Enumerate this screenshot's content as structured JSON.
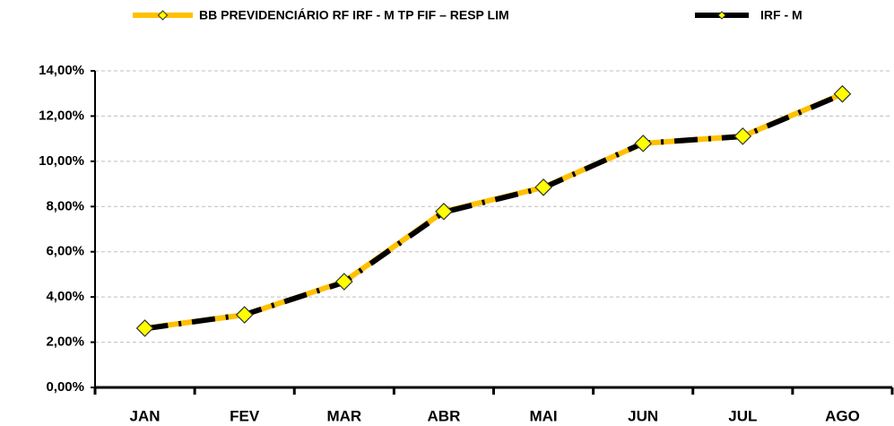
{
  "chart_data": {
    "type": "line",
    "categories": [
      "JAN",
      "FEV",
      "MAR",
      "ABR",
      "MAI",
      "JUN",
      "JUL",
      "AGO"
    ],
    "series": [
      {
        "name": "BB PREVIDENCIÁRIO RF IRF - M TP FIF – RESP LIM",
        "color": "#ffc000",
        "marker_color": "#ffff00",
        "values": [
          2.62,
          3.21,
          4.68,
          7.78,
          8.85,
          10.79,
          11.11,
          12.98
        ]
      },
      {
        "name": "IRF - M",
        "color": "#000000",
        "marker_color": "#ffff00",
        "values": [
          2.6,
          3.22,
          4.65,
          7.75,
          8.83,
          10.8,
          11.1,
          12.96
        ]
      }
    ],
    "ylim": [
      0,
      14
    ],
    "yticks": [
      {
        "value": 0,
        "label": "0,00%"
      },
      {
        "value": 2,
        "label": "2,00%"
      },
      {
        "value": 4,
        "label": "4,00%"
      },
      {
        "value": 6,
        "label": "6,00%"
      },
      {
        "value": 8,
        "label": "8,00%"
      },
      {
        "value": 10,
        "label": "10,00%"
      },
      {
        "value": 12,
        "label": "12,00%"
      },
      {
        "value": 14,
        "label": "14,00%"
      }
    ],
    "grid": true
  }
}
